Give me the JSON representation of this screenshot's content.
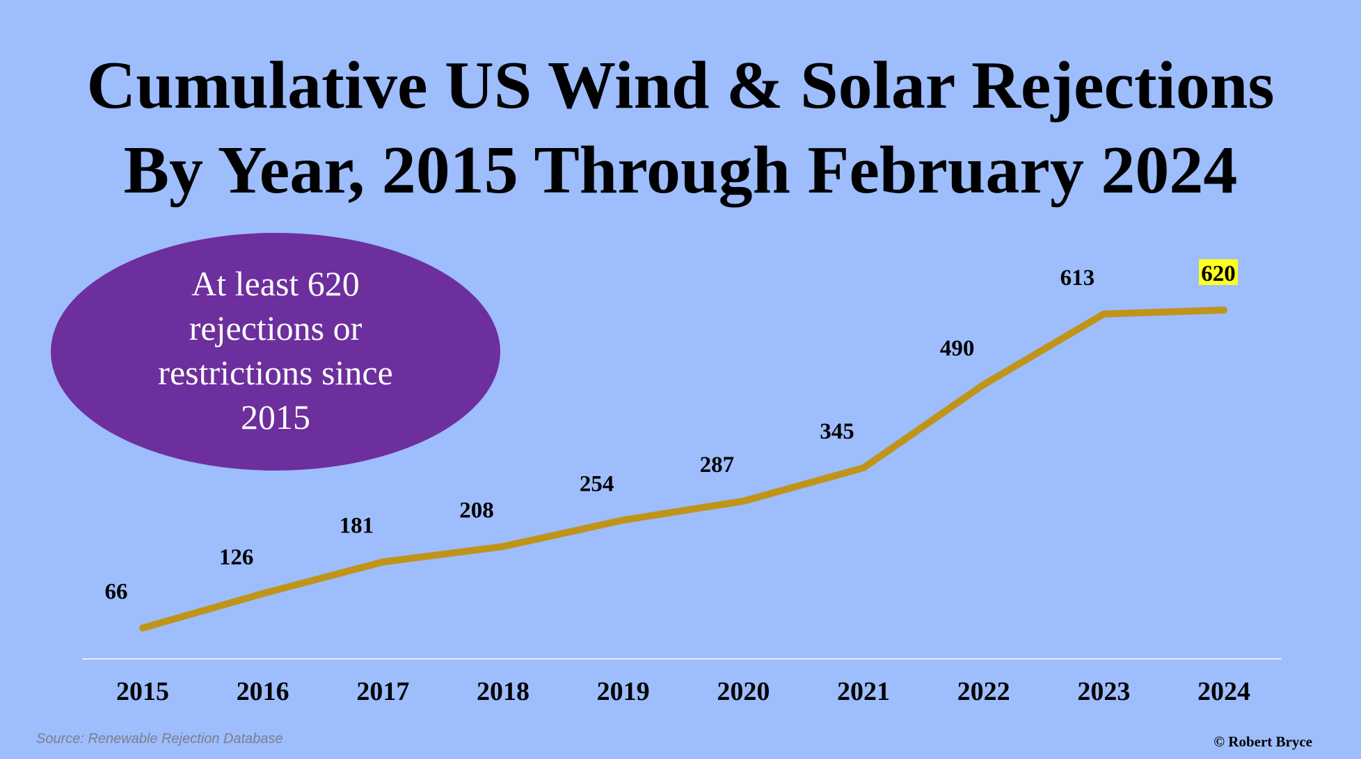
{
  "title_lines": [
    "Cumulative US Wind & Solar Rejections",
    "By Year, 2015 Through February 2024"
  ],
  "callout": {
    "text": "At least 620 rejections or restrictions since 2015"
  },
  "source": "Source: Renewable Rejection Database",
  "credit": "© Robert Bryce",
  "chart_data": {
    "type": "line",
    "title": "Cumulative US Wind & Solar Rejections By Year, 2015 Through February 2024",
    "xlabel": "",
    "ylabel": "",
    "x": [
      "2015",
      "2016",
      "2017",
      "2018",
      "2019",
      "2020",
      "2021",
      "2022",
      "2023",
      "2024"
    ],
    "series": [
      {
        "values": [
          66,
          126,
          181,
          208,
          254,
          287,
          345,
          490,
          613,
          620
        ]
      }
    ],
    "ylim": [
      0,
      700
    ],
    "grid": false,
    "legend": "none",
    "data_labels": true,
    "highlighted_label": "2024",
    "colors": {
      "line": "#c09418",
      "background": "#9dbdfd",
      "baseline": "#e4ecfb",
      "highlight": "#ffff22",
      "callout": "#6d2f9d"
    }
  }
}
